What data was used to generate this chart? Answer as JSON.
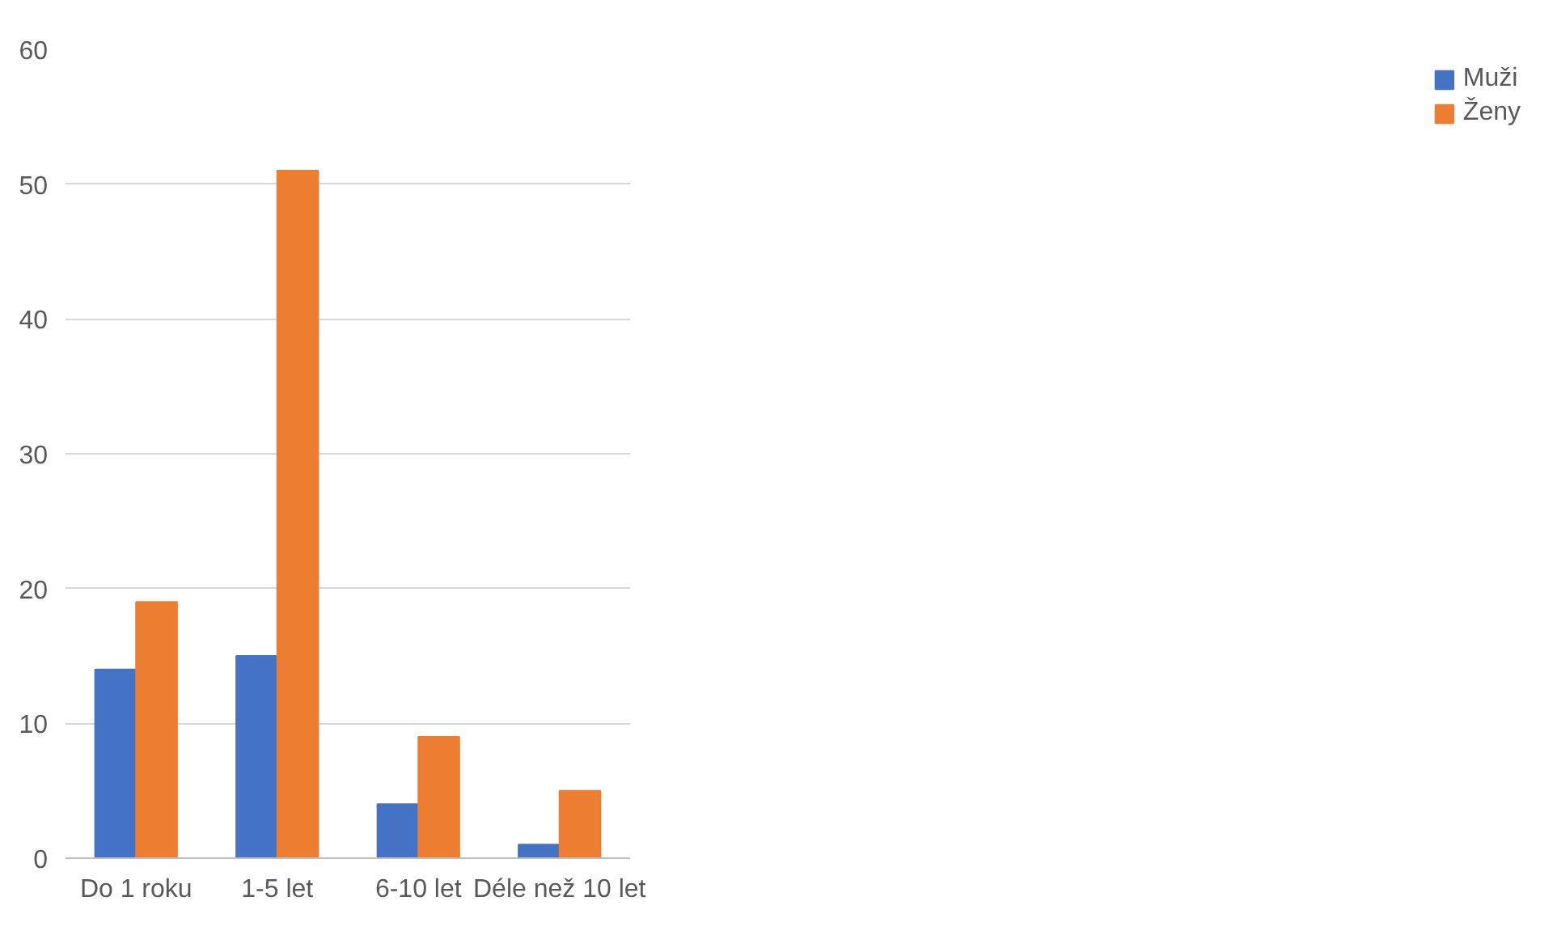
{
  "chart_data": {
    "type": "bar",
    "categories": [
      "Do 1 roku",
      "1-5 let",
      "6-10 let",
      "Déle než 10 let"
    ],
    "series": [
      {
        "name": "Muži",
        "color": "#4472c4",
        "values": [
          14,
          15,
          4,
          1
        ]
      },
      {
        "name": "Ženy",
        "color": "#ed7d31",
        "values": [
          19,
          51,
          9,
          5
        ]
      }
    ],
    "ylim": [
      0,
      60
    ],
    "yticks": [
      0,
      10,
      20,
      30,
      40,
      50,
      60
    ],
    "grid": "y",
    "legend": "right"
  }
}
